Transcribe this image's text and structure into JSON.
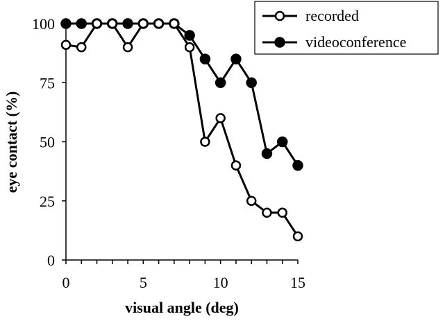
{
  "chart_data": {
    "type": "line",
    "xlabel": "visual angle (deg)",
    "ylabel": "eye contact (%)",
    "xlim": [
      0,
      15
    ],
    "ylim": [
      0,
      100
    ],
    "x_ticks": [
      "0",
      "5",
      "10",
      "15"
    ],
    "y_ticks": [
      "0",
      "25",
      "50",
      "75",
      "100"
    ],
    "grid": false,
    "legend_position": "top-right",
    "x": [
      0,
      1,
      2,
      3,
      4,
      5,
      6,
      7,
      8,
      9,
      10,
      11,
      12,
      13,
      14,
      15
    ],
    "series": [
      {
        "name": "recorded",
        "marker": "open-circle",
        "color": "#000000",
        "values": [
          91,
          90,
          100,
          100,
          90,
          100,
          100,
          100,
          90,
          50,
          60,
          40,
          25,
          20,
          20,
          10
        ]
      },
      {
        "name": "videoconference",
        "marker": "filled-circle",
        "color": "#000000",
        "values": [
          100,
          100,
          100,
          100,
          100,
          100,
          100,
          100,
          95,
          85,
          75,
          85,
          75,
          45,
          50,
          40
        ]
      }
    ]
  }
}
